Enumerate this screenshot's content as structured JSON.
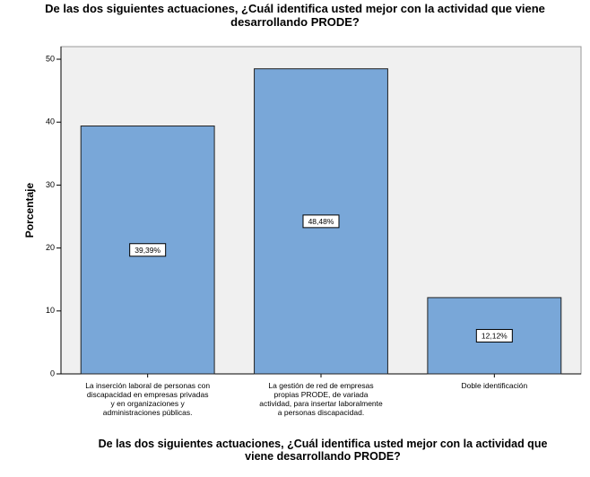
{
  "chart_data": {
    "type": "bar",
    "title": "De las dos siguientes actuaciones, ¿Cuál identifica usted mejor con la actividad que viene desarrollando PRODE?",
    "x_label": "De las dos siguientes actuaciones, ¿Cuál identifica usted mejor con la actividad que viene desarrollando PRODE?",
    "y_label": "Porcentaje",
    "categories": [
      "La inserción laboral de personas con discapacidad en empresas privadas y en organizaciones y administraciones públicas.",
      "La gestión de red de empresas propias PRODE, de variada actividad, para insertar laboralmente a personas discapacidad.",
      "Doble identificación"
    ],
    "values": [
      39.39,
      48.48,
      12.12
    ],
    "value_labels": [
      "39,39%",
      "48,48%",
      "12,12%"
    ],
    "color": "#79a7d8",
    "ylim": [
      0,
      52
    ],
    "yticks": [
      0,
      10,
      20,
      30,
      40,
      50
    ]
  }
}
